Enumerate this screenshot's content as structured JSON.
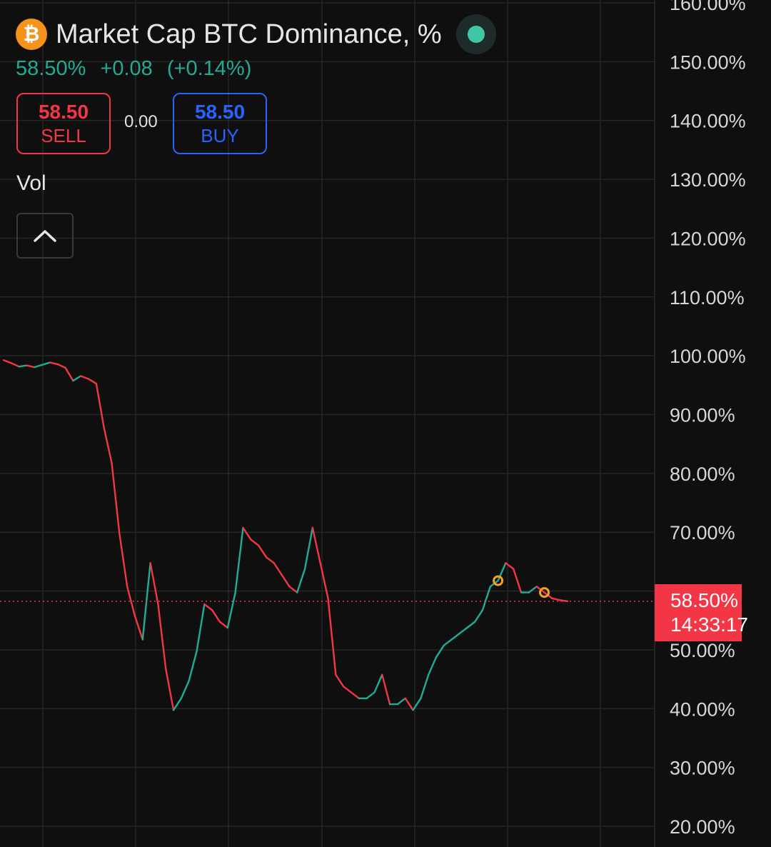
{
  "header": {
    "icon": "bitcoin-icon",
    "icon_glyph": "₿",
    "title": "Market Cap BTC Dominance, %",
    "status_icon": "live-status-icon"
  },
  "quote": {
    "last": "58.50%",
    "change": "+0.08",
    "change_pct": "(+0.14%)"
  },
  "trade": {
    "sell_price": "58.50",
    "sell_label": "SELL",
    "spread": "0.00",
    "buy_price": "58.50",
    "buy_label": "BUY"
  },
  "indicator": {
    "vol_label": "Vol",
    "collapse_icon": "chevron-up-icon"
  },
  "price_tag": {
    "price": "58.50%",
    "countdown": "14:33:17"
  },
  "colors": {
    "background": "#0f0f0f",
    "up": "#22ab94",
    "down": "#f23645",
    "buy": "#2962ff",
    "grid": "#262626",
    "marker": "#f7a21b"
  },
  "chart_data": {
    "type": "line",
    "series": [
      {
        "values": [
          99.5,
          99.0,
          98.4,
          98.6,
          98.3,
          98.7,
          99.1,
          98.8,
          98.2,
          96.0,
          96.8,
          96.3,
          95.5,
          88.0,
          82.0,
          70.0,
          61.0,
          56.0,
          52.0,
          65.0,
          58.0,
          47.0,
          40.0,
          42.0,
          45.0,
          50.0,
          58.0,
          57.0,
          55.0,
          54.0,
          60.0,
          71.0,
          69.0,
          68.0,
          66.0,
          65.0,
          63.0,
          61.0,
          60.0,
          64.0,
          71.0,
          65.0,
          59.0,
          46.0,
          44.0,
          43.0,
          42.0,
          42.0,
          43.0,
          46.0,
          41.0,
          41.0,
          42.0,
          40.0,
          42.0,
          46.0,
          49.0,
          51.0,
          52.0,
          53.0,
          54.0,
          55.0,
          57.0,
          61.0,
          62.0,
          65.0,
          64.0,
          60.0,
          60.0,
          61.0,
          60.0,
          59.0,
          58.7,
          58.5
        ]
      }
    ],
    "marker_indices": [
      64,
      70
    ],
    "last_value": 58.5,
    "y_ticks": [
      "160.00%",
      "150.00%",
      "140.00%",
      "130.00%",
      "120.00%",
      "110.00%",
      "100.00%",
      "90.00%",
      "80.00%",
      "70.00%",
      "60.00%",
      "50.00%",
      "40.00%",
      "30.00%",
      "20.00%"
    ],
    "y_tick_values": [
      160,
      150,
      140,
      130,
      120,
      110,
      100,
      90,
      80,
      70,
      60,
      50,
      40,
      30,
      20
    ],
    "ylim": [
      18,
      161
    ],
    "y_scale": "linear",
    "grid": true
  }
}
